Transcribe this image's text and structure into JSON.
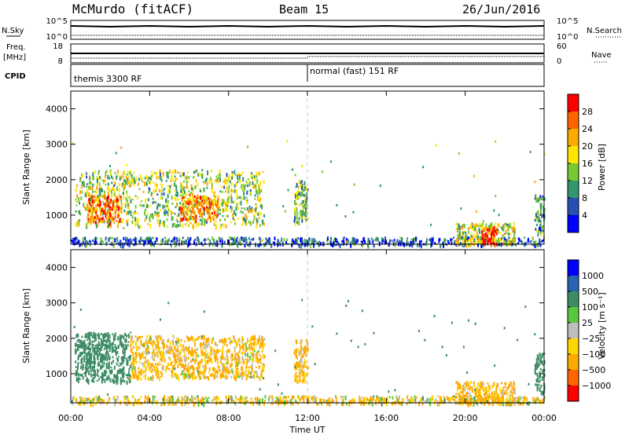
{
  "header": {
    "station": "McMurdo (fitACF)",
    "beam": "Beam 15",
    "date": "26/Jun/2016"
  },
  "summary_panels": {
    "nsky_label": "N.Sky",
    "nsky_ticks": [
      "10^5",
      "10^0"
    ],
    "nsearch_label": "N.Search",
    "nsearch_ticks": [
      "10^5",
      "10^0"
    ],
    "freq_label_line1": "Freq.",
    "freq_label_line2": "[MHz]",
    "freq_ticks": [
      "18",
      "8"
    ],
    "nave_label": "Nave",
    "nave_ticks": [
      "60",
      "0"
    ],
    "cpid_label": "CPID",
    "cpid_segments": [
      {
        "start_hour": 0,
        "label": "themis 3300 RF"
      },
      {
        "start_hour": 12,
        "label": "normal (fast) 151 RF"
      }
    ]
  },
  "x_axis": {
    "title": "Time UT",
    "range_hours": [
      0,
      24
    ],
    "ticks": [
      "00:00",
      "04:00",
      "08:00",
      "12:00",
      "16:00",
      "20:00",
      "00:00"
    ]
  },
  "power_panel": {
    "ylabel": "Slant Range [km]",
    "yticks": [
      "4000",
      "3000",
      "2000",
      "1000"
    ],
    "colorbar_title": "Power [dB]",
    "colorbar_ticks": [
      "28",
      "24",
      "20",
      "16",
      "12",
      "8",
      "4"
    ],
    "colorbar_colors": [
      "#0000ff",
      "#2850b4",
      "#32966e",
      "#78c832",
      "#ffe600",
      "#ffaa00",
      "#ff6400",
      "#ff0000"
    ]
  },
  "velocity_panel": {
    "ylabel": "Slant Range [km]",
    "yticks": [
      "4000",
      "3000",
      "2000",
      "1000"
    ],
    "colorbar_title": "Velocity [m s⁻¹]",
    "colorbar_ticks": [
      "1000",
      "500",
      "100",
      "25",
      "−25",
      "−100",
      "−500",
      "−1000"
    ],
    "colorbar_colors": [
      "#ff0000",
      "#ff6400",
      "#ffaa00",
      "#ffd700",
      "#bebebe",
      "#5ac83c",
      "#3c8c64",
      "#2864b4",
      "#0000ff"
    ]
  },
  "chart_data": {
    "type": "heatmap",
    "title": "McMurdo (fitACF)",
    "subtitle": "Beam 15",
    "xlabel": "Time UT",
    "ylabel": "Slant Range [km]",
    "xlim_hours": [
      0,
      24
    ],
    "ylim_km": [
      180,
      4500
    ],
    "panels": [
      {
        "name": "Power [dB]",
        "color_range": [
          0,
          30
        ],
        "echo_regions": [
          {
            "t0": 0.2,
            "t1": 9.8,
            "r0": 700,
            "r1": 2300,
            "value": 14
          },
          {
            "t0": 0.8,
            "t1": 2.5,
            "r0": 800,
            "r1": 1600,
            "value": 24
          },
          {
            "t0": 5.5,
            "t1": 7.5,
            "r0": 900,
            "r1": 1600,
            "value": 22
          },
          {
            "t0": 11.3,
            "t1": 12.0,
            "r0": 800,
            "r1": 2000,
            "value": 12
          },
          {
            "t0": 0.0,
            "t1": 24.0,
            "r0": 180,
            "r1": 400,
            "value": 6
          },
          {
            "t0": 19.5,
            "t1": 22.5,
            "r0": 200,
            "r1": 800,
            "value": 16
          },
          {
            "t0": 20.8,
            "t1": 21.6,
            "r0": 200,
            "r1": 700,
            "value": 28
          },
          {
            "t0": 23.5,
            "t1": 24.0,
            "r0": 500,
            "r1": 1600,
            "value": 10
          }
        ]
      },
      {
        "name": "Velocity [m s-1]",
        "color_range": [
          -1000,
          1000
        ],
        "echo_regions": [
          {
            "t0": 0.2,
            "t1": 3.0,
            "r0": 800,
            "r1": 2200,
            "value": 300
          },
          {
            "t0": 3.0,
            "t1": 9.8,
            "r0": 900,
            "r1": 2100,
            "value": -150
          },
          {
            "t0": 11.3,
            "t1": 12.0,
            "r0": 800,
            "r1": 2000,
            "value": -200
          },
          {
            "t0": 0.0,
            "t1": 24.0,
            "r0": 180,
            "r1": 400,
            "value": -80
          },
          {
            "t0": 19.5,
            "t1": 22.5,
            "r0": 200,
            "r1": 800,
            "value": -200
          },
          {
            "t0": 23.5,
            "t1": 24.0,
            "r0": 500,
            "r1": 1600,
            "value": 300
          }
        ]
      }
    ]
  }
}
